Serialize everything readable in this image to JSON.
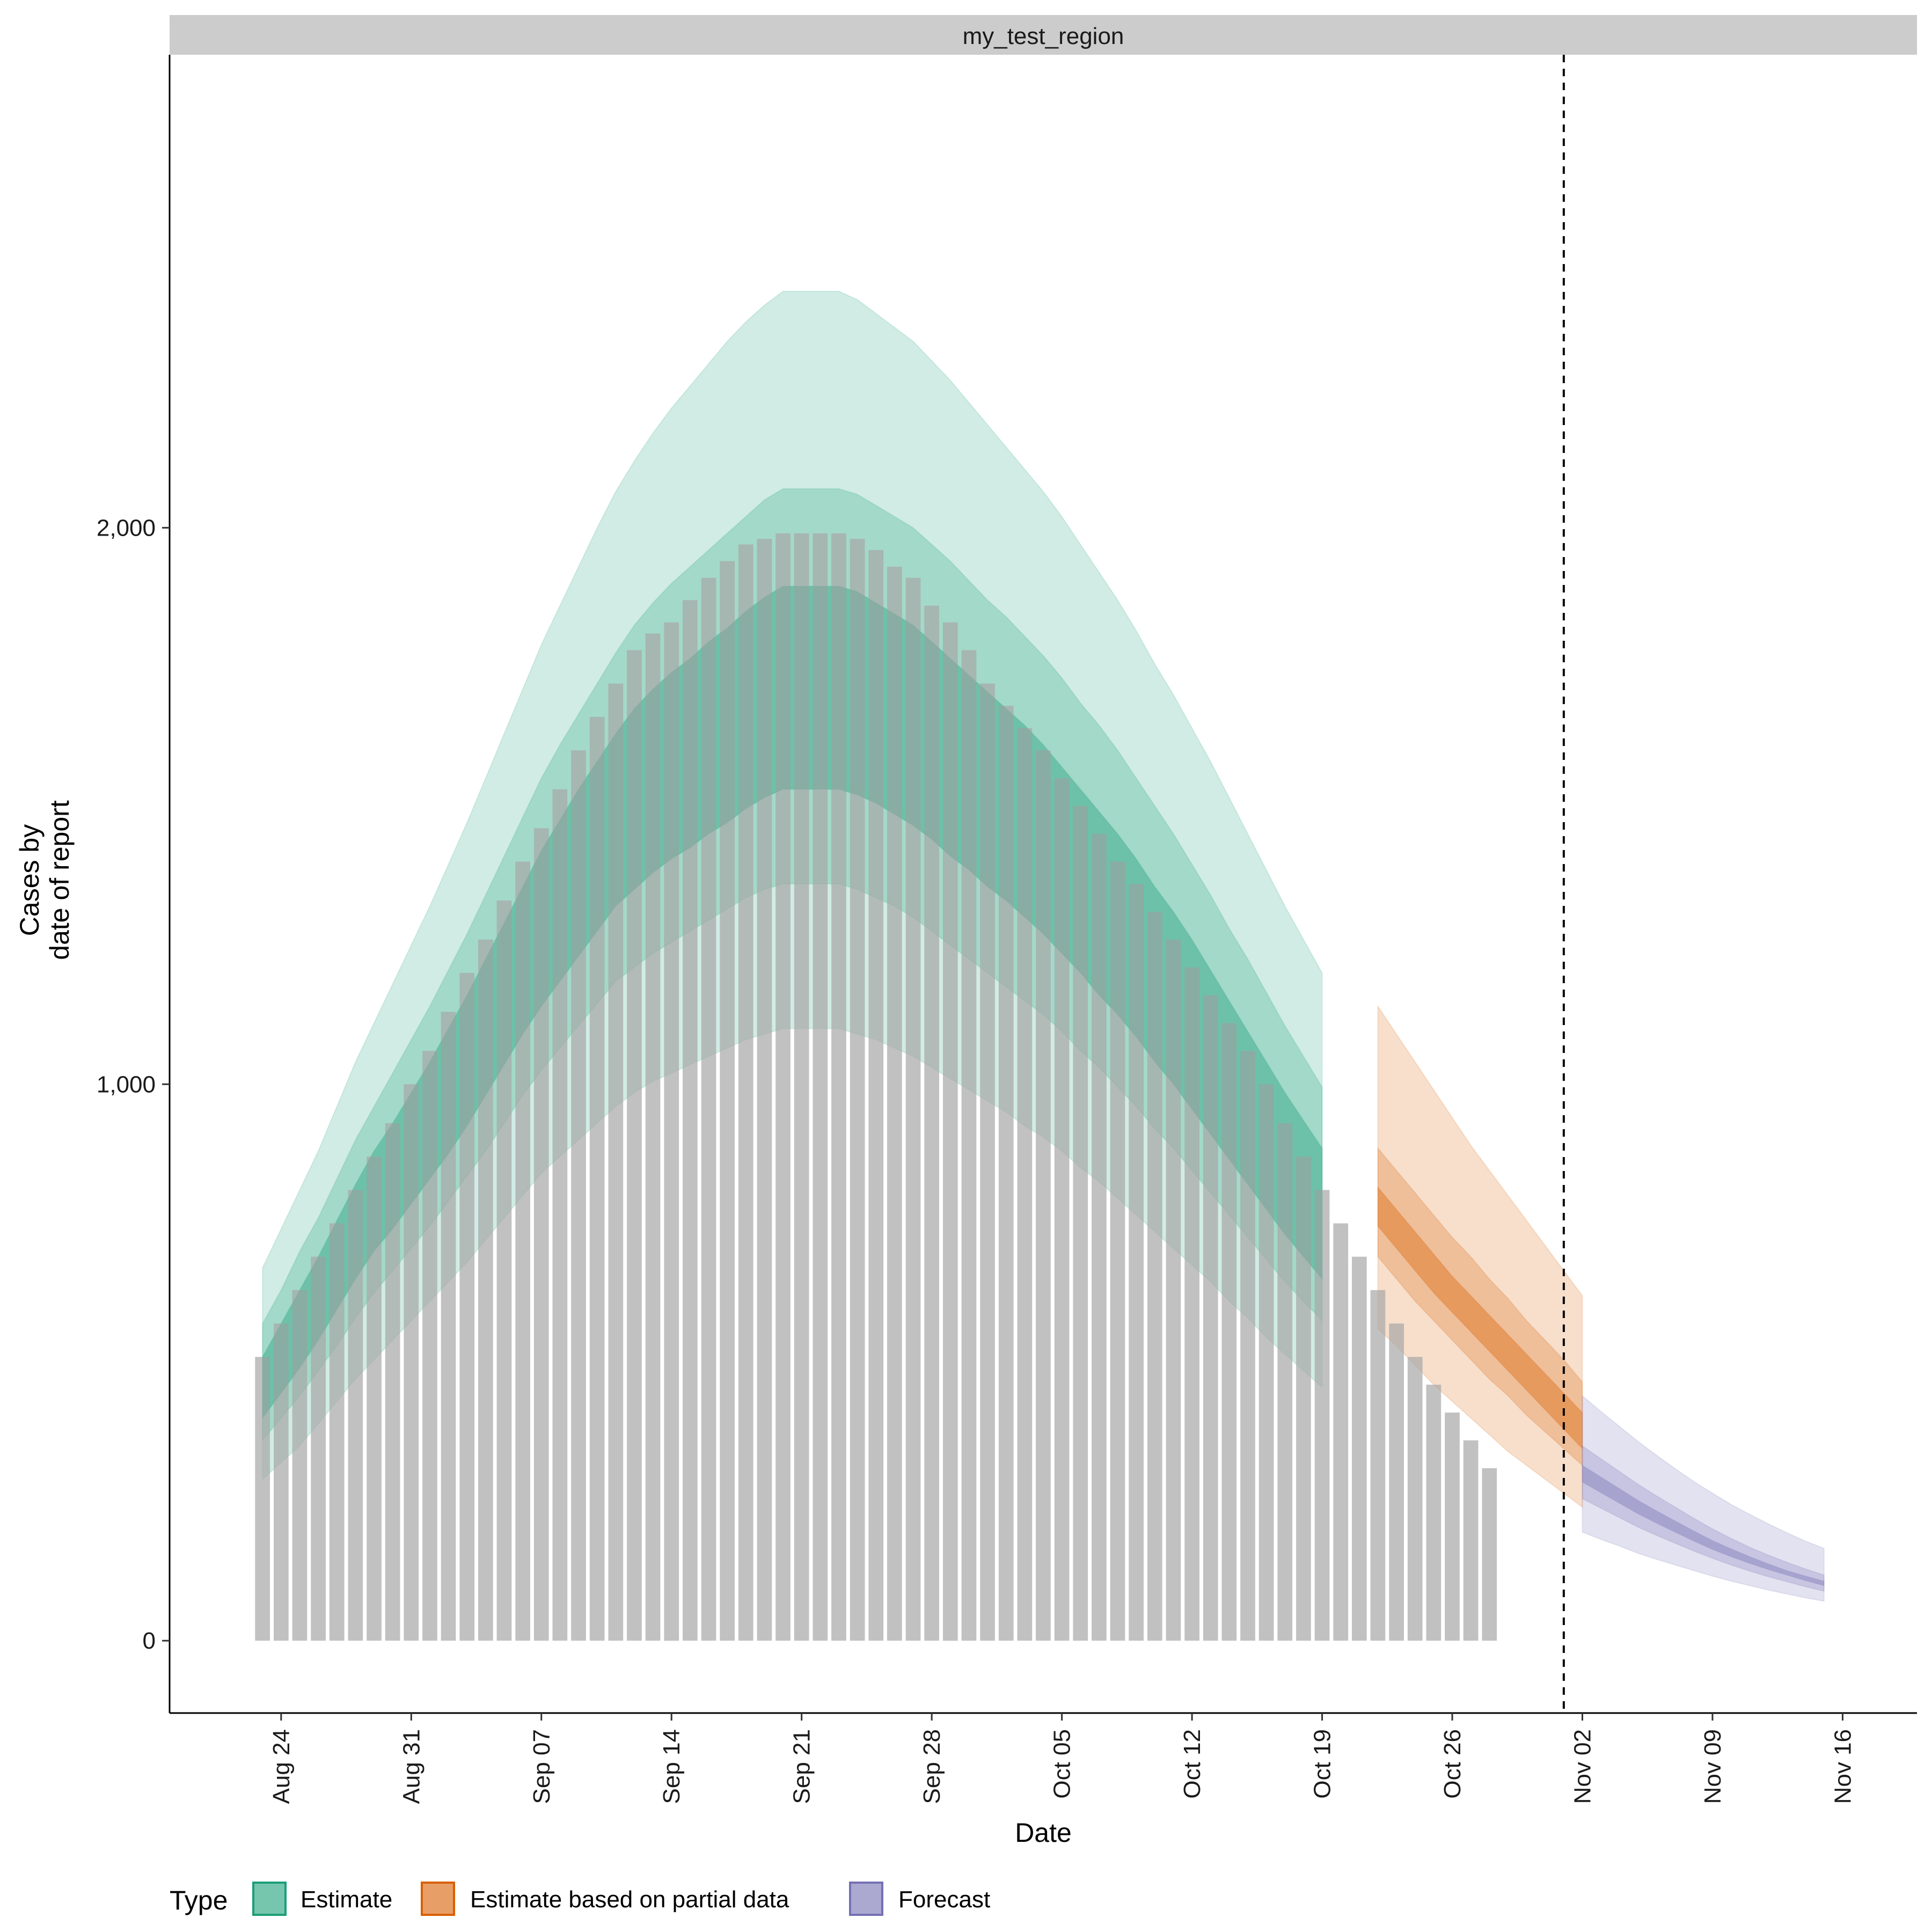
{
  "chart_data": {
    "type": "bar",
    "panel_title": "my_test_region",
    "xlabel": "Date",
    "ylabel_lines": [
      "Cases by",
      "date of report"
    ],
    "ylim": [
      -130,
      2850
    ],
    "y_ticks": [
      0,
      1000,
      2000
    ],
    "y_tick_labels": [
      "0",
      "1,000",
      "2,000"
    ],
    "x_tick_dates": [
      "2020-08-24",
      "2020-08-31",
      "2020-09-07",
      "2020-09-14",
      "2020-09-21",
      "2020-09-28",
      "2020-10-05",
      "2020-10-12",
      "2020-10-19",
      "2020-10-26",
      "2020-11-02",
      "2020-11-09",
      "2020-11-16"
    ],
    "x_tick_labels": [
      "Aug 24",
      "Aug 31",
      "Sep 07",
      "Sep 14",
      "Sep 21",
      "Sep 28",
      "Oct 05",
      "Oct 12",
      "Oct 19",
      "Oct 26",
      "Nov 02",
      "Nov 09",
      "Nov 16"
    ],
    "xlim": [
      "2020-08-18",
      "2020-11-20"
    ],
    "reference_line_date": "2020-11-01",
    "reported_cases": {
      "start_date": "2020-08-23",
      "values": [
        510,
        570,
        630,
        690,
        750,
        810,
        870,
        930,
        1000,
        1060,
        1130,
        1200,
        1260,
        1330,
        1400,
        1460,
        1530,
        1600,
        1660,
        1720,
        1780,
        1810,
        1830,
        1870,
        1910,
        1940,
        1970,
        1980,
        1990,
        1990,
        1990,
        1990,
        1980,
        1960,
        1930,
        1910,
        1860,
        1830,
        1780,
        1720,
        1680,
        1640,
        1600,
        1550,
        1500,
        1450,
        1400,
        1360,
        1310,
        1260,
        1210,
        1160,
        1110,
        1060,
        1000,
        930,
        870,
        810,
        750,
        690,
        630,
        570,
        510,
        460,
        410,
        360,
        310
      ]
    },
    "series": [
      {
        "name": "Estimate",
        "color": "#1B9E77",
        "start_date": "2020-08-23",
        "median": [
          460,
          510,
          560,
          620,
          680,
          740,
          790,
          840,
          890,
          940,
          990,
          1050,
          1110,
          1170,
          1230,
          1290,
          1340,
          1390,
          1440,
          1490,
          1530,
          1560,
          1590,
          1610,
          1640,
          1670,
          1700,
          1720,
          1740,
          1740,
          1740,
          1740,
          1730,
          1710,
          1690,
          1670,
          1640,
          1610,
          1580,
          1550,
          1520,
          1490,
          1460,
          1420,
          1380,
          1340,
          1300,
          1260,
          1210,
          1170,
          1120,
          1070,
          1020,
          970,
          920,
          870,
          820,
          780
        ],
        "band20": [
          [
            400,
            510
          ],
          [
            445,
            570
          ],
          [
            490,
            630
          ],
          [
            540,
            690
          ],
          [
            595,
            755
          ],
          [
            650,
            820
          ],
          [
            700,
            880
          ],
          [
            740,
            930
          ],
          [
            785,
            985
          ],
          [
            830,
            1040
          ],
          [
            875,
            1100
          ],
          [
            925,
            1160
          ],
          [
            980,
            1225
          ],
          [
            1035,
            1290
          ],
          [
            1090,
            1355
          ],
          [
            1140,
            1420
          ],
          [
            1185,
            1475
          ],
          [
            1230,
            1530
          ],
          [
            1275,
            1580
          ],
          [
            1320,
            1630
          ],
          [
            1350,
            1675
          ],
          [
            1380,
            1710
          ],
          [
            1405,
            1740
          ],
          [
            1425,
            1765
          ],
          [
            1450,
            1795
          ],
          [
            1470,
            1820
          ],
          [
            1495,
            1850
          ],
          [
            1515,
            1875
          ],
          [
            1530,
            1895
          ],
          [
            1530,
            1895
          ],
          [
            1530,
            1895
          ],
          [
            1530,
            1895
          ],
          [
            1520,
            1885
          ],
          [
            1505,
            1865
          ],
          [
            1485,
            1845
          ],
          [
            1465,
            1825
          ],
          [
            1440,
            1795
          ],
          [
            1410,
            1765
          ],
          [
            1385,
            1735
          ],
          [
            1355,
            1705
          ],
          [
            1330,
            1675
          ],
          [
            1300,
            1645
          ],
          [
            1270,
            1610
          ],
          [
            1235,
            1570
          ],
          [
            1200,
            1530
          ],
          [
            1160,
            1490
          ],
          [
            1125,
            1450
          ],
          [
            1085,
            1405
          ],
          [
            1040,
            1355
          ],
          [
            1000,
            1310
          ],
          [
            955,
            1260
          ],
          [
            910,
            1205
          ],
          [
            865,
            1150
          ],
          [
            820,
            1095
          ],
          [
            775,
            1040
          ],
          [
            730,
            985
          ],
          [
            690,
            935
          ],
          [
            650,
            885
          ]
        ],
        "band50": [
          [
            360,
            570
          ],
          [
            400,
            630
          ],
          [
            440,
            700
          ],
          [
            485,
            760
          ],
          [
            530,
            830
          ],
          [
            580,
            900
          ],
          [
            625,
            960
          ],
          [
            665,
            1020
          ],
          [
            705,
            1080
          ],
          [
            745,
            1140
          ],
          [
            790,
            1205
          ],
          [
            835,
            1270
          ],
          [
            880,
            1340
          ],
          [
            930,
            1410
          ],
          [
            980,
            1480
          ],
          [
            1025,
            1550
          ],
          [
            1065,
            1610
          ],
          [
            1105,
            1665
          ],
          [
            1145,
            1720
          ],
          [
            1185,
            1775
          ],
          [
            1210,
            1825
          ],
          [
            1235,
            1865
          ],
          [
            1255,
            1900
          ],
          [
            1275,
            1930
          ],
          [
            1295,
            1960
          ],
          [
            1315,
            1990
          ],
          [
            1335,
            2020
          ],
          [
            1350,
            2050
          ],
          [
            1360,
            2070
          ],
          [
            1360,
            2070
          ],
          [
            1360,
            2070
          ],
          [
            1360,
            2070
          ],
          [
            1350,
            2060
          ],
          [
            1335,
            2040
          ],
          [
            1320,
            2020
          ],
          [
            1300,
            2000
          ],
          [
            1275,
            1970
          ],
          [
            1250,
            1940
          ],
          [
            1225,
            1905
          ],
          [
            1200,
            1870
          ],
          [
            1175,
            1840
          ],
          [
            1150,
            1805
          ],
          [
            1125,
            1770
          ],
          [
            1095,
            1730
          ],
          [
            1060,
            1685
          ],
          [
            1030,
            1645
          ],
          [
            995,
            1600
          ],
          [
            960,
            1550
          ],
          [
            920,
            1500
          ],
          [
            885,
            1450
          ],
          [
            845,
            1395
          ],
          [
            805,
            1340
          ],
          [
            765,
            1280
          ],
          [
            725,
            1225
          ],
          [
            685,
            1165
          ],
          [
            645,
            1105
          ],
          [
            610,
            1050
          ],
          [
            575,
            995
          ]
        ],
        "band90": [
          [
            290,
            670
          ],
          [
            320,
            740
          ],
          [
            350,
            810
          ],
          [
            390,
            880
          ],
          [
            430,
            960
          ],
          [
            470,
            1040
          ],
          [
            505,
            1110
          ],
          [
            540,
            1180
          ],
          [
            575,
            1250
          ],
          [
            610,
            1320
          ],
          [
            645,
            1395
          ],
          [
            680,
            1470
          ],
          [
            720,
            1550
          ],
          [
            760,
            1630
          ],
          [
            800,
            1710
          ],
          [
            840,
            1790
          ],
          [
            870,
            1860
          ],
          [
            900,
            1930
          ],
          [
            930,
            2000
          ],
          [
            960,
            2065
          ],
          [
            985,
            2120
          ],
          [
            1005,
            2170
          ],
          [
            1020,
            2215
          ],
          [
            1035,
            2255
          ],
          [
            1050,
            2295
          ],
          [
            1065,
            2335
          ],
          [
            1080,
            2370
          ],
          [
            1090,
            2400
          ],
          [
            1100,
            2425
          ],
          [
            1100,
            2425
          ],
          [
            1100,
            2425
          ],
          [
            1100,
            2425
          ],
          [
            1090,
            2410
          ],
          [
            1080,
            2385
          ],
          [
            1065,
            2360
          ],
          [
            1050,
            2335
          ],
          [
            1030,
            2300
          ],
          [
            1010,
            2265
          ],
          [
            990,
            2225
          ],
          [
            970,
            2185
          ],
          [
            950,
            2145
          ],
          [
            925,
            2105
          ],
          [
            905,
            2065
          ],
          [
            880,
            2020
          ],
          [
            850,
            1970
          ],
          [
            825,
            1920
          ],
          [
            795,
            1870
          ],
          [
            765,
            1815
          ],
          [
            735,
            1755
          ],
          [
            705,
            1700
          ],
          [
            675,
            1640
          ],
          [
            645,
            1580
          ],
          [
            610,
            1515
          ],
          [
            580,
            1450
          ],
          [
            545,
            1385
          ],
          [
            515,
            1320
          ],
          [
            485,
            1260
          ],
          [
            455,
            1200
          ]
        ]
      },
      {
        "name": "Estimate based on partial data",
        "color": "#D95F02",
        "start_date": "2020-10-22",
        "median": [
          780,
          740,
          700,
          660,
          620,
          585,
          550,
          515,
          480,
          445,
          410,
          375
        ],
        "band20": [
          [
            745,
            815
          ],
          [
            705,
            775
          ],
          [
            665,
            735
          ],
          [
            625,
            695
          ],
          [
            590,
            655
          ],
          [
            555,
            620
          ],
          [
            520,
            585
          ],
          [
            485,
            550
          ],
          [
            450,
            515
          ],
          [
            415,
            480
          ],
          [
            380,
            445
          ],
          [
            345,
            410
          ]
        ],
        "band50": [
          [
            690,
            885
          ],
          [
            650,
            845
          ],
          [
            610,
            805
          ],
          [
            575,
            765
          ],
          [
            540,
            725
          ],
          [
            505,
            690
          ],
          [
            470,
            650
          ],
          [
            440,
            615
          ],
          [
            405,
            575
          ],
          [
            375,
            540
          ],
          [
            345,
            505
          ],
          [
            315,
            465
          ]
        ],
        "band90": [
          [
            560,
            1140
          ],
          [
            530,
            1090
          ],
          [
            495,
            1040
          ],
          [
            460,
            990
          ],
          [
            430,
            940
          ],
          [
            400,
            890
          ],
          [
            370,
            845
          ],
          [
            340,
            800
          ],
          [
            315,
            755
          ],
          [
            290,
            710
          ],
          [
            265,
            665
          ],
          [
            240,
            620
          ]
        ]
      },
      {
        "name": "Forecast",
        "color": "#7570B3",
        "start_date": "2020-11-02",
        "median": [
          300,
          280,
          260,
          240,
          222,
          205,
          188,
          172,
          158,
          145,
          133,
          122,
          112,
          103
        ],
        "band20": [
          [
            285,
            315
          ],
          [
            266,
            294
          ],
          [
            247,
            273
          ],
          [
            228,
            252
          ],
          [
            211,
            233
          ],
          [
            195,
            215
          ],
          [
            179,
            197
          ],
          [
            164,
            180
          ],
          [
            151,
            165
          ],
          [
            139,
            151
          ],
          [
            128,
            138
          ],
          [
            118,
            126
          ],
          [
            108,
            116
          ],
          [
            99,
            107
          ]
        ],
        "band50": [
          [
            255,
            350
          ],
          [
            238,
            327
          ],
          [
            221,
            304
          ],
          [
            204,
            281
          ],
          [
            189,
            260
          ],
          [
            175,
            240
          ],
          [
            161,
            220
          ],
          [
            148,
            201
          ],
          [
            136,
            184
          ],
          [
            125,
            168
          ],
          [
            115,
            154
          ],
          [
            106,
            141
          ],
          [
            97,
            129
          ],
          [
            89,
            118
          ]
        ],
        "band90": [
          [
            195,
            440
          ],
          [
            182,
            412
          ],
          [
            170,
            385
          ],
          [
            157,
            358
          ],
          [
            146,
            333
          ],
          [
            136,
            309
          ],
          [
            126,
            286
          ],
          [
            116,
            265
          ],
          [
            107,
            245
          ],
          [
            99,
            227
          ],
          [
            91,
            210
          ],
          [
            84,
            194
          ],
          [
            77,
            179
          ],
          [
            71,
            166
          ]
        ]
      }
    ],
    "legend": {
      "title": "Type",
      "position": "bottom",
      "items": [
        "Estimate",
        "Estimate based on partial data",
        "Forecast"
      ]
    }
  }
}
